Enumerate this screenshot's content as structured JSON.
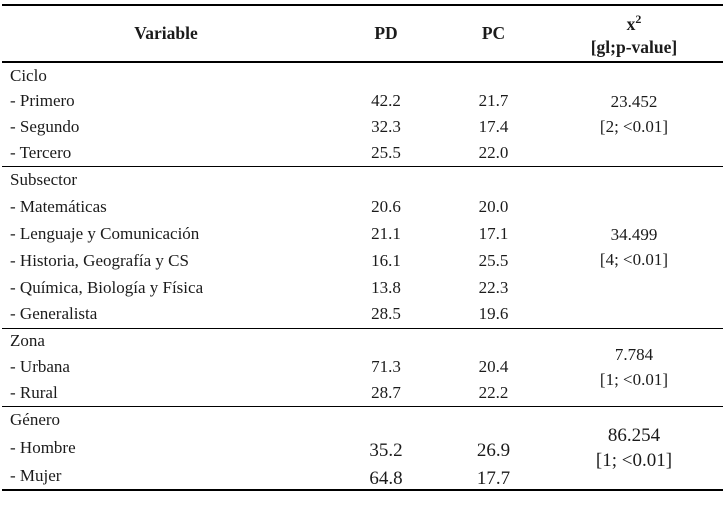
{
  "table": {
    "headers": {
      "variable": "Variable",
      "pd": "PD",
      "pc": "PC",
      "chi_base": "x",
      "chi_sup": "2",
      "chi_sub": "[gl;p-value]"
    },
    "groups": [
      {
        "label": "Ciclo",
        "chi": {
          "stat": "23.452",
          "detail": "[2; <0.01]"
        },
        "rows": [
          {
            "label": "- Primero",
            "pd": "42.2",
            "pc": "21.7"
          },
          {
            "label": "- Segundo",
            "pd": "32.3",
            "pc": "17.4"
          },
          {
            "label": "- Tercero",
            "pd": "25.5",
            "pc": "22.0"
          }
        ]
      },
      {
        "label": "Subsector",
        "chi": {
          "stat": "34.499",
          "detail": "[4; <0.01]"
        },
        "rows": [
          {
            "label": "- Matemáticas",
            "pd": "20.6",
            "pc": "20.0"
          },
          {
            "label": "- Lenguaje y Comunicación",
            "pd": "21.1",
            "pc": "17.1"
          },
          {
            "label": "- Historia, Geografía y CS",
            "pd": "16.1",
            "pc": "25.5"
          },
          {
            "label": "- Química, Biología y Física",
            "pd": "13.8",
            "pc": "22.3"
          },
          {
            "label": "- Generalista",
            "pd": "28.5",
            "pc": "19.6"
          }
        ]
      },
      {
        "label": "Zona",
        "chi": {
          "stat": "7.784",
          "detail": "[1; <0.01]"
        },
        "rows": [
          {
            "label": "- Urbana",
            "pd": "71.3",
            "pc": "20.4"
          },
          {
            "label": "- Rural",
            "pd": "28.7",
            "pc": "22.2"
          }
        ]
      },
      {
        "label": "Género",
        "chi": {
          "stat": "86.254",
          "detail": "[1; <0.01]"
        },
        "rows": [
          {
            "label": "- Hombre",
            "pd": "35.2",
            "pc": "26.9"
          },
          {
            "label": "- Mujer",
            "pd": "64.8",
            "pc": "17.7"
          }
        ]
      }
    ]
  }
}
